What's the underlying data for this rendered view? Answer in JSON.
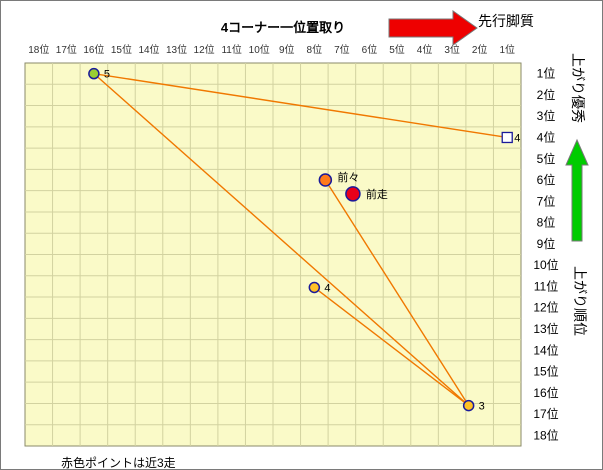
{
  "chart_data": {
    "type": "scatter",
    "title": "4コーナー一位置取り",
    "x_axis": {
      "label": "4コーナー一位置取り",
      "ticks": [
        "18位",
        "17位",
        "16位",
        "15位",
        "14位",
        "13位",
        "12位",
        "11位",
        "10位",
        "9位",
        "8位",
        "7位",
        "6位",
        "5位",
        "4位",
        "3位",
        "2位",
        "1位"
      ],
      "range": [
        18,
        1
      ]
    },
    "y_axis": {
      "ticks": [
        "1位",
        "2位",
        "3位",
        "4位",
        "5位",
        "6位",
        "7位",
        "8位",
        "9位",
        "10位",
        "11位",
        "12位",
        "13位",
        "14位",
        "15位",
        "16位",
        "17位",
        "18位"
      ],
      "range": [
        1,
        18
      ]
    },
    "grid": true,
    "top_arrow_label": "先行脚質",
    "right_arrow_label": "上がり優秀",
    "right_axis_label": "上がり順位",
    "note": "赤色ポイントは近3走",
    "points": [
      {
        "label": "5",
        "x": 16,
        "y": 1,
        "style": "green"
      },
      {
        "label": "4",
        "x": 1,
        "y": 4,
        "style": "square"
      },
      {
        "label": "前々",
        "x": 7.6,
        "y": 6,
        "style": "orange"
      },
      {
        "label": "前走",
        "x": 6.6,
        "y": 6.65,
        "style": "red"
      },
      {
        "label": "4",
        "x": 8.0,
        "y": 11.05,
        "style": "yellow"
      },
      {
        "label": "3",
        "x": 2.4,
        "y": 16.6,
        "style": "yellow"
      }
    ],
    "lines": [
      {
        "from": 0,
        "to": 1
      },
      {
        "from": 0,
        "to": 5
      },
      {
        "from": 2,
        "to": 5
      },
      {
        "from": 4,
        "to": 5
      }
    ],
    "colors": {
      "plot_bg": "#fafac8",
      "grid": "#d2d2a0",
      "line": "#f07800",
      "red_arrow": "#ee0000",
      "green_arrow": "#00cc00",
      "point_stroke": "#1a1a9a",
      "green": "#9acd32",
      "orange": "#ff7a1a",
      "red": "#e8001a",
      "yellow": "#ffc125"
    }
  }
}
